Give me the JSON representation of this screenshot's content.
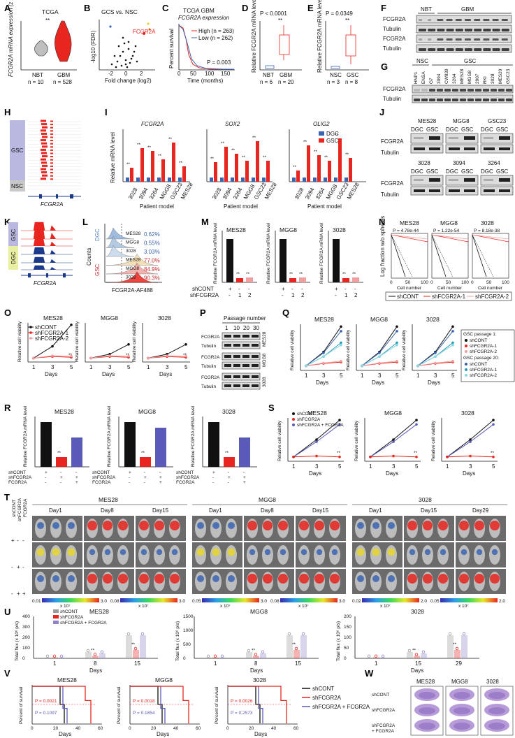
{
  "panels": {
    "A": {
      "letter": "A",
      "title": "TCGA",
      "ylabel": "FCGR2A mRNA expression (z score)",
      "sig": "**",
      "groups": [
        {
          "name": "NBT",
          "n": "n = 10"
        },
        {
          "name": "GBM",
          "n": "n = 528"
        }
      ]
    },
    "B": {
      "letter": "B",
      "title": "GCS vs. NSC",
      "ylabel": "-log10 (FDR)",
      "xlabel": "Fold change (log2)",
      "gene": "FCGR2A",
      "ticks": [
        "-2",
        "0",
        "2"
      ]
    },
    "C": {
      "letter": "C",
      "title1": "TCGA GBM",
      "title2": "FCGR2A expression",
      "ylabel": "Percent survival",
      "xlabel": "Time (months)",
      "high": "High (n = 263)",
      "low": "Low (n = 262)",
      "p": "P = 0.003",
      "xticks": [
        "0",
        "50",
        "100",
        "150"
      ]
    },
    "D": {
      "letter": "D",
      "p": "P < 0.0001",
      "sig": "**",
      "ylabel": "Relative FCGR2A mRNA level",
      "groups": [
        {
          "name": "NBT",
          "n": "n = 6"
        },
        {
          "name": "GBM",
          "n": "n = 20"
        }
      ]
    },
    "E": {
      "letter": "E",
      "p": "P = 0.0349",
      "sig": "**",
      "ylabel": "Relative FCGR2A mRNA level",
      "groups": [
        {
          "name": "NSC",
          "n": "n = 3"
        },
        {
          "name": "GSC",
          "n": "n = 8"
        }
      ]
    },
    "F": {
      "letter": "F",
      "groups": [
        "NBT",
        "GBM"
      ],
      "rows": [
        "FCGR2A",
        "Tubulin",
        "FCGR2A",
        "Tubulin"
      ]
    },
    "G": {
      "letter": "G",
      "groups": [
        "NSC",
        "GSC"
      ],
      "rows": [
        "FCGR2A",
        "Tubulin"
      ],
      "lanes": [
        "HNP1",
        "ENSA",
        "G7",
        "3094",
        "CW839",
        "3264",
        "MES28",
        "MGG8",
        "2907",
        "RKI",
        "3028",
        "MES20",
        "GSC23"
      ]
    },
    "H": {
      "letter": "H",
      "groups": [
        "GSC",
        "NSC"
      ],
      "gene": "FCGR2A"
    },
    "I": {
      "letter": "I",
      "genes": [
        "FCGR2A",
        "SOX2",
        "OLIG2"
      ],
      "ylabel": "Relative mRNA level",
      "xlabel": "Patient model",
      "legend": [
        "DGC",
        "GSC"
      ],
      "sig": "**",
      "models": [
        "3028",
        "3094",
        "3264",
        "MGG8",
        "GSC23",
        "MES28"
      ]
    },
    "J": {
      "letter": "J",
      "models": [
        "MES28",
        "MGG8",
        "GSC23",
        "3028",
        "3094",
        "3264"
      ],
      "lanes": [
        "DGC",
        "GSC"
      ],
      "rows": [
        "FCGR2A",
        "Tubulin"
      ]
    },
    "K": {
      "letter": "K",
      "groups": [
        "GSC",
        "DGC"
      ],
      "gene": "FCGR2A"
    },
    "L": {
      "letter": "L",
      "ylabel": "Counts",
      "xlabel": "FCGR2A-AF488",
      "groups": [
        "DGC",
        "GSC"
      ],
      "rows": [
        {
          "name": "MES28",
          "pct": "0.62%"
        },
        {
          "name": "MGG8",
          "pct": "0.55%"
        },
        {
          "name": "3028",
          "pct": "3.03%"
        },
        {
          "name": "MES28",
          "pct": "77.0%"
        },
        {
          "name": "MGG8",
          "pct": "84.9%"
        },
        {
          "name": "3028",
          "pct": "90.3%"
        }
      ]
    },
    "M": {
      "letter": "M",
      "models": [
        "MES28",
        "MGG8",
        "3028"
      ],
      "ylabel": "Relative FCGR2A mRNA level",
      "row1": "shCONT",
      "row2": "shFCGR2A",
      "vals1": [
        "+",
        "-",
        "-"
      ],
      "vals2": [
        "-",
        "1",
        "2"
      ],
      "sig": "**"
    },
    "N": {
      "letter": "N",
      "models": [
        {
          "name": "MES28",
          "p": "P = 4.78e-44"
        },
        {
          "name": "MGG8",
          "p": "P = 1.22e-54"
        },
        {
          "name": "3028",
          "p": "P = 8.18e-38"
        }
      ],
      "ylabel": "Log fraction w/o spheres",
      "xlabel": "Cell number",
      "xticks": [
        "0",
        "50",
        "100"
      ],
      "legend": [
        "shCONT",
        "shFCGR2A-1",
        "shFCGR2A-2"
      ]
    },
    "O": {
      "letter": "O",
      "models": [
        "MES28",
        "MGG8",
        "3028"
      ],
      "ylabel": "Relative cell viability",
      "xlabel": "Days",
      "legend": [
        "shCONT",
        "shFCGR2A-1",
        "shFCGR2A-2"
      ],
      "xticks": [
        "1",
        "3",
        "5"
      ],
      "sig": "**"
    },
    "P": {
      "letter": "P",
      "title": "Passage number",
      "passages": [
        "1",
        "10",
        "20",
        "30"
      ],
      "rows": [
        "FCGR2A",
        "Tubulin",
        "FCGR2A",
        "Tubulin",
        "FCGR2A",
        "Tubulin"
      ],
      "models": [
        "MES28",
        "MGG8",
        "3028"
      ]
    },
    "Q": {
      "letter": "Q",
      "models": [
        "MES28",
        "MGG8",
        "3028"
      ],
      "ylabel": "Relative cell viability",
      "xlabel": "Days",
      "xticks": [
        "1",
        "3",
        "5"
      ],
      "legend_title1": "GSC passage 1:",
      "legend_title2": "GSC passage 20:",
      "legend": [
        "shCONT",
        "shFCGR2A-1",
        "shFCGR2A-2"
      ]
    },
    "R": {
      "letter": "R",
      "models": [
        "MES28",
        "MGG8",
        "3028"
      ],
      "ylabel": "Relative FCGR2A mRNA level",
      "rows": [
        "shCONT",
        "shFCGR2A",
        "FCGR2A"
      ],
      "signs": [
        [
          "+",
          "-",
          "-"
        ],
        [
          "-",
          "+",
          "+"
        ],
        [
          "-",
          "-",
          "+"
        ]
      ],
      "sig": "**"
    },
    "S": {
      "letter": "S",
      "models": [
        "MES28",
        "MGG8",
        "3028"
      ],
      "ylabel": "Relative cell viability",
      "xlabel": "Days",
      "xticks": [
        "1",
        "3",
        "5"
      ],
      "legend": [
        "shCONT",
        "shFCGR2A",
        "shFCGR2A + FCGR2A"
      ],
      "sig": "**"
    },
    "T": {
      "letter": "T",
      "rowhead": [
        "shCONT",
        "shFCGR2A",
        "FCGR2A"
      ],
      "rows": [
        [
          "+",
          "-",
          "-"
        ],
        [
          "-",
          "+",
          "-"
        ],
        [
          "-",
          "+",
          "+"
        ]
      ],
      "models": [
        {
          "name": "MES28",
          "days": [
            "Day1",
            "Day8",
            "Day15"
          ],
          "scales": [
            {
              "lo": "0.01",
              "hi": "3.0",
              "unit": "x 10⁷"
            },
            {
              "lo": "0.08",
              "hi": "3.0",
              "unit": "x 10⁷"
            }
          ]
        },
        {
          "name": "MGG8",
          "days": [
            "Day1",
            "Day8",
            "Day15"
          ],
          "scales": [
            {
              "lo": "0.05",
              "hi": "3.0",
              "unit": "x 10⁷"
            },
            {
              "lo": "0.08",
              "hi": "3.0",
              "unit": "x 10⁷"
            }
          ]
        },
        {
          "name": "3028",
          "days": [
            "Day1",
            "Day15",
            "Day29"
          ],
          "scales": [
            {
              "lo": "0.02",
              "hi": "2.0",
              "unit": "x 10⁷"
            },
            {
              "lo": "0.05",
              "hi": "2.0",
              "unit": "x 10⁷"
            }
          ]
        }
      ]
    },
    "U": {
      "letter": "U",
      "ylabel": "Total flux (x 10⁶ p/s)",
      "xlabel": "Days",
      "legend": [
        "shCONT",
        "shFCGR2A",
        "shFCGR2A + FCGR2A"
      ],
      "models": [
        {
          "name": "MES28",
          "days": [
            "1",
            "8",
            "15"
          ],
          "yticks": [
            "0",
            "100",
            "200",
            "300",
            "400"
          ]
        },
        {
          "name": "MGG8",
          "days": [
            "1",
            "8",
            "15"
          ],
          "yticks": [
            "0",
            "500",
            "1000",
            "1500"
          ]
        },
        {
          "name": "3028",
          "days": [
            "1",
            "15",
            "29"
          ],
          "yticks": [
            "0",
            "50",
            "100",
            "150",
            "200"
          ]
        }
      ],
      "sig": "**"
    },
    "V": {
      "letter": "V",
      "ylabel": "Percent of survival",
      "xlabel": "Days",
      "xticks": [
        "0",
        "20",
        "40",
        "60"
      ],
      "legend": [
        "shCONT",
        "shFCGR2A",
        "shFCGR2A + FCGR2A"
      ],
      "models": [
        {
          "name": "MES28",
          "p1": "P = 0.0021",
          "p2": "P = 0.1097"
        },
        {
          "name": "MGG8",
          "p1": "P = 0.0018",
          "p2": "P = 0.1854"
        },
        {
          "name": "3028",
          "p1": "P = 0.0026",
          "p2": "P = 0.2573"
        }
      ]
    },
    "W": {
      "letter": "W",
      "models": [
        "MES28",
        "MGG8",
        "3028"
      ],
      "rows": [
        "shCONT",
        "shFCGR2A",
        "shFCGR2A + FCGR2A"
      ]
    }
  },
  "colors": {
    "red": "#e8251f",
    "blue": "#3a64b0",
    "lavender": "#8c83c8",
    "pink": "#f0a0a0",
    "grey": "#9a9a9a"
  }
}
